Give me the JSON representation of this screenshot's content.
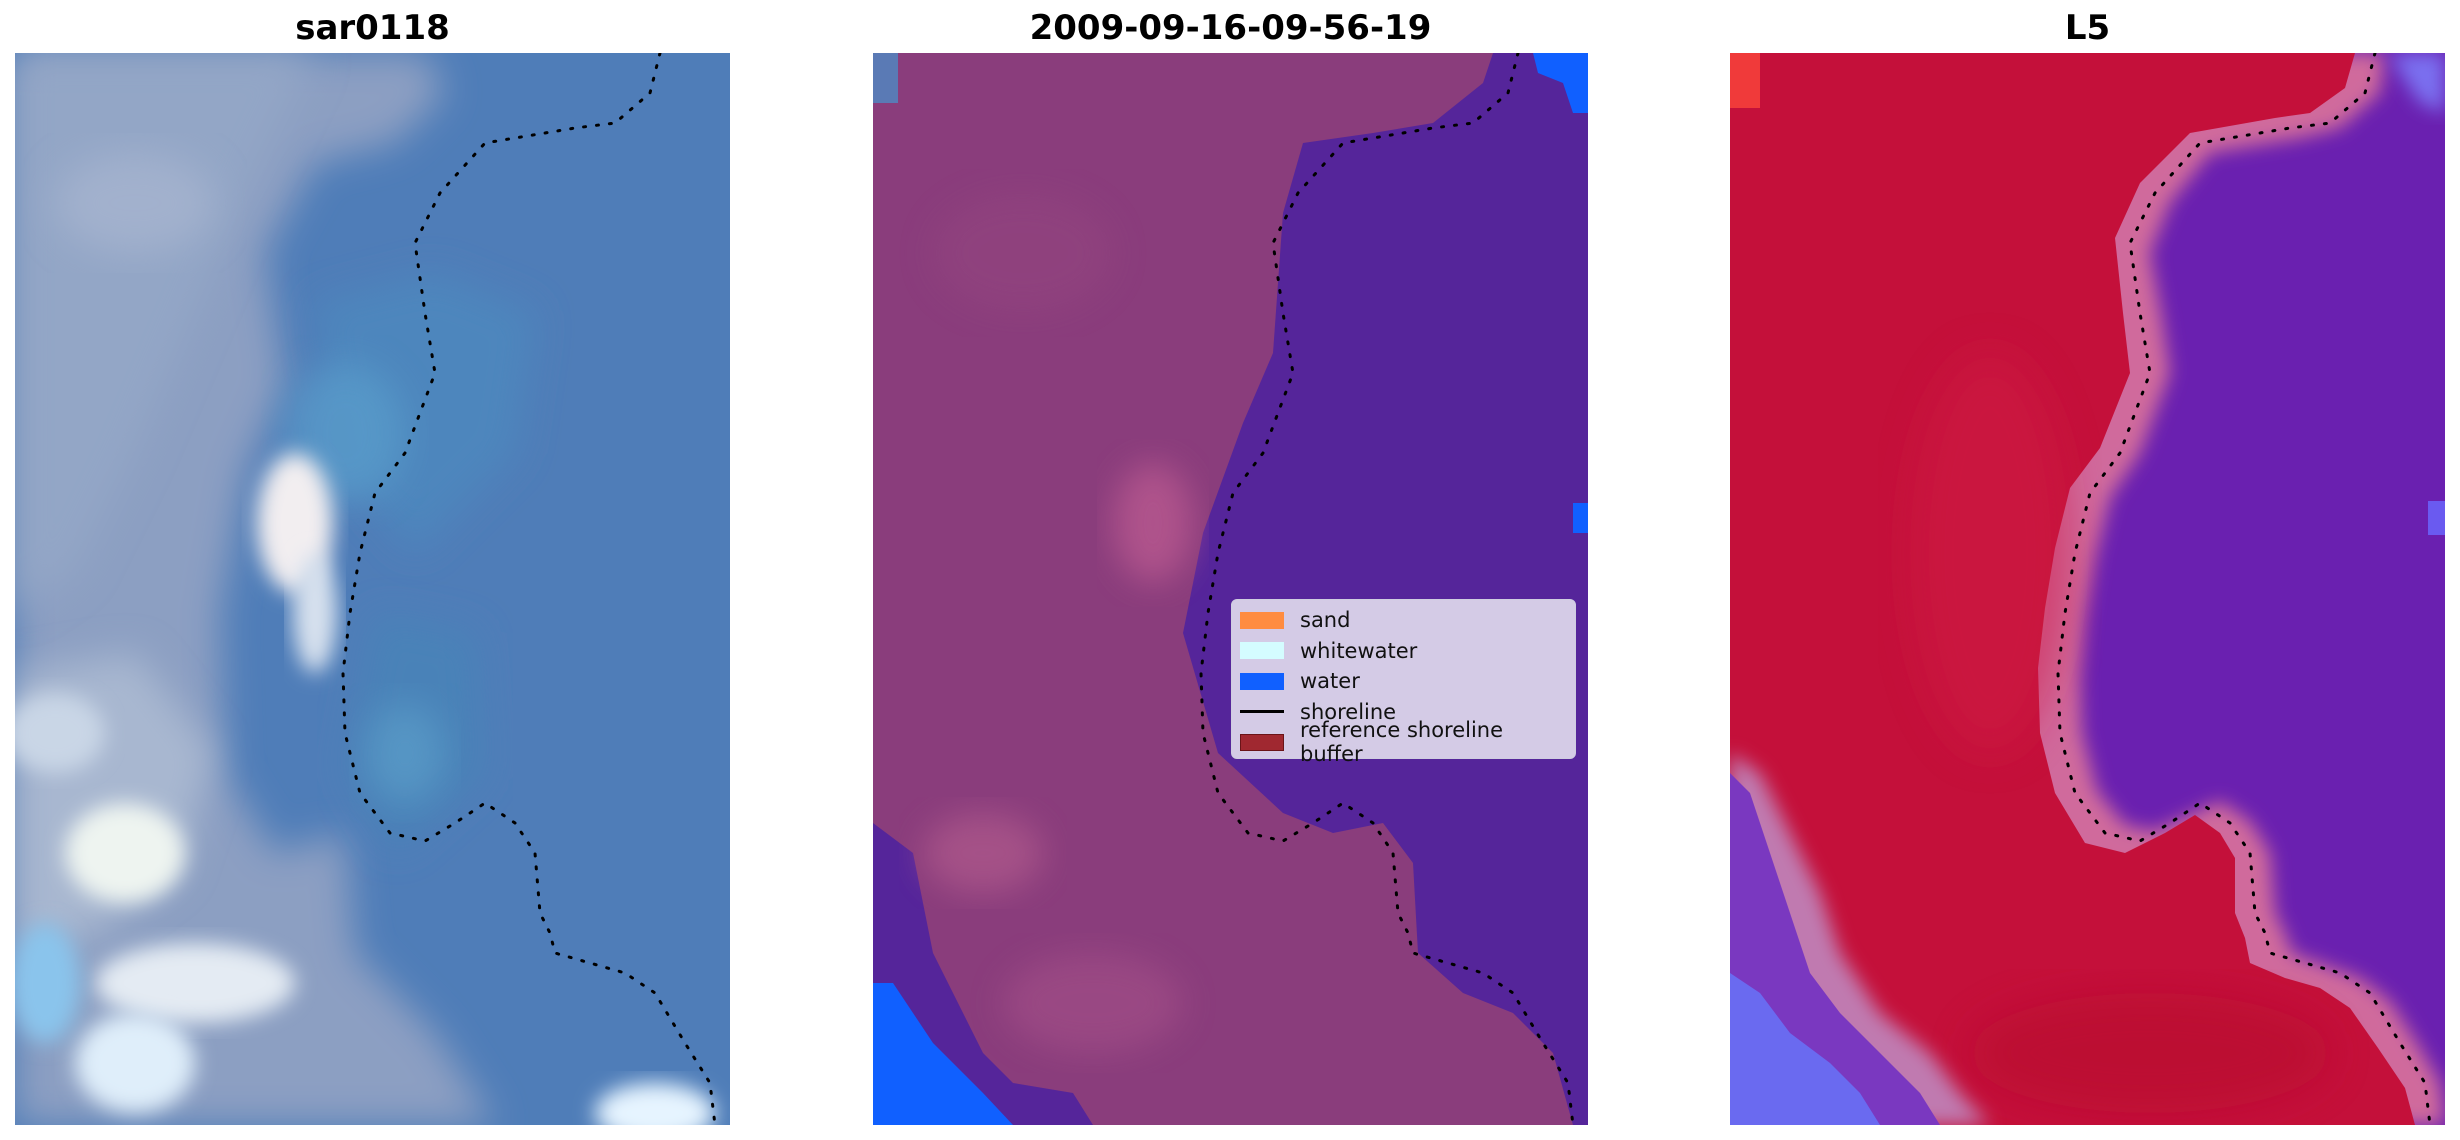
{
  "panels": [
    {
      "title": "sar0118"
    },
    {
      "title": "2009-09-16-09-56-19"
    },
    {
      "title": "L5"
    }
  ],
  "legend": {
    "items": [
      {
        "label": "sand",
        "color": "#ff8c40",
        "kind": "patch"
      },
      {
        "label": "whitewater",
        "color": "#d4fcff",
        "kind": "patch"
      },
      {
        "label": "water",
        "color": "#1060ff",
        "kind": "patch"
      },
      {
        "label": "shoreline",
        "color": "#000000",
        "kind": "line"
      },
      {
        "label": "reference shoreline buffer",
        "color": "#a02830",
        "kind": "patch"
      }
    ]
  },
  "colors": {
    "sar_water": "#4a7ab6",
    "sar_land": "#8fa3c4",
    "class_land": "#8a3d7c",
    "class_water": "#55259a",
    "class_bright_water": "#1060ff",
    "index_land": "#c4103a",
    "index_water": "#6a20b0",
    "shoreline_dots": "#000000"
  }
}
